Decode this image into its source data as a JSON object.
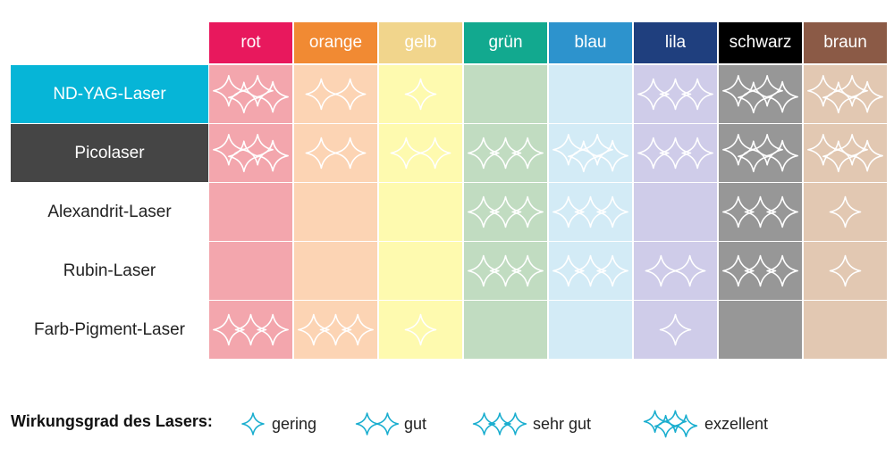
{
  "chart_data": {
    "type": "table",
    "columns": [
      {
        "label": "rot",
        "color": "#e8185d",
        "cell_color": "#f3a6ad"
      },
      {
        "label": "orange",
        "color": "#f18a33",
        "cell_color": "#fcd4b4"
      },
      {
        "label": "gelb",
        "color": "#f1d58c",
        "cell_color": "#fefaaf"
      },
      {
        "label": "grün",
        "color": "#12a98f",
        "cell_color": "#c1dcc1"
      },
      {
        "label": "blau",
        "color": "#2d93cd",
        "cell_color": "#d3ebf6"
      },
      {
        "label": "lila",
        "color": "#1f3f7e",
        "cell_color": "#cfcce9"
      },
      {
        "label": "schwarz",
        "color": "#000000",
        "cell_color": "#979797"
      },
      {
        "label": "braun",
        "color": "#8b5a46",
        "cell_color": "#e2c8b2"
      }
    ],
    "rows": [
      {
        "label": "ND-YAG-Laser",
        "header_color": "#06b5d7",
        "values": [
          4,
          2,
          1,
          0,
          0,
          3,
          4,
          4
        ]
      },
      {
        "label": "Picolaser",
        "header_color": "#454545",
        "values": [
          4,
          2,
          2,
          3,
          4,
          3,
          4,
          4
        ]
      },
      {
        "label": "Alexandrit-Laser",
        "header_color": null,
        "values": [
          0,
          0,
          0,
          3,
          3,
          0,
          3,
          1
        ]
      },
      {
        "label": "Rubin-Laser",
        "header_color": null,
        "values": [
          0,
          0,
          0,
          3,
          3,
          2,
          3,
          1
        ]
      },
      {
        "label": "Farb-Pigment-Laser",
        "header_color": null,
        "values": [
          3,
          3,
          1,
          0,
          0,
          1,
          0,
          0
        ]
      }
    ],
    "value_scale": {
      "1": "gering",
      "2": "gut",
      "3": "sehr gut",
      "4": "exzellent"
    }
  },
  "legend": {
    "title": "Wirkungsgrad des Lasers:",
    "icon_color": "#1aaecf",
    "items": [
      {
        "level": 1,
        "label": "gering"
      },
      {
        "level": 2,
        "label": "gut"
      },
      {
        "level": 3,
        "label": "sehr gut"
      },
      {
        "level": 4,
        "label": "exzellent"
      }
    ]
  }
}
